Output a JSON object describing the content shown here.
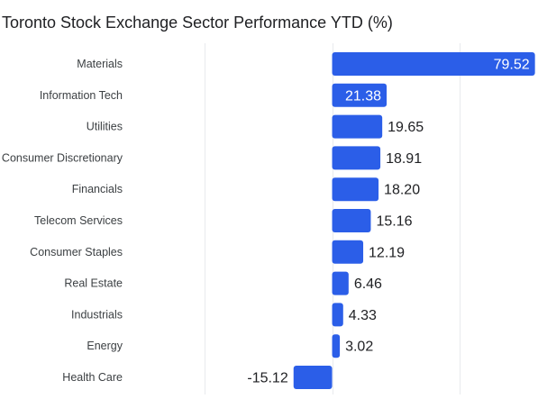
{
  "chart_data": {
    "type": "bar",
    "orientation": "horizontal",
    "title": "Toronto Stock Exchange Sector Performance YTD (%)",
    "categories": [
      "Materials",
      "Information Tech",
      "Utilities",
      "Consumer Discretionary",
      "Financials",
      "Telecom Services",
      "Consumer Staples",
      "Real Estate",
      "Industrials",
      "Energy",
      "Health Care"
    ],
    "values": [
      79.52,
      21.38,
      19.65,
      18.91,
      18.2,
      15.16,
      12.19,
      6.46,
      4.33,
      3.02,
      -15.12
    ],
    "data_labels": [
      "79.52",
      "21.38",
      "19.65",
      "18.91",
      "18.20",
      "15.16",
      "12.19",
      "6.46",
      "4.33",
      "3.02",
      "-15.12"
    ],
    "xlim": [
      -50,
      80
    ],
    "grid": true,
    "bar_color": "#2b5ee8",
    "legend": "none"
  }
}
